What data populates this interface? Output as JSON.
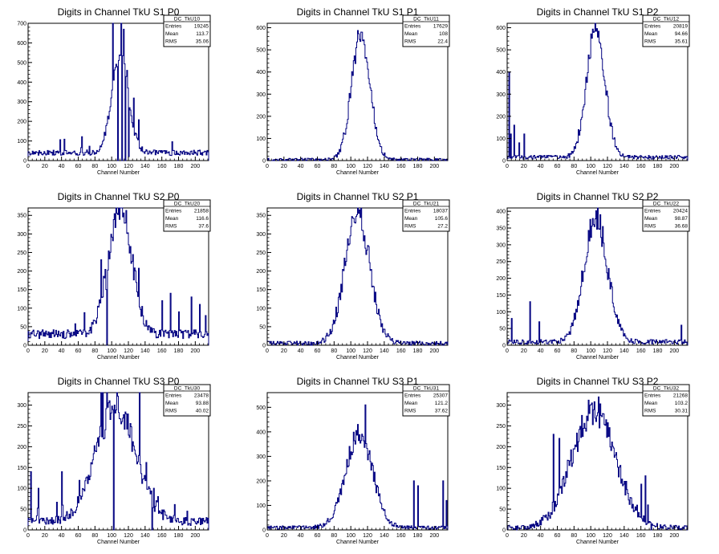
{
  "chart_data": [
    {
      "type": "histogram",
      "title": "Digits in Channel TkU S1 P0",
      "xlabel": "Channel Number",
      "xlim": [
        0,
        216
      ],
      "ylim": [
        0,
        700
      ],
      "xticks": [
        0,
        20,
        40,
        60,
        80,
        100,
        120,
        140,
        160,
        180,
        200
      ],
      "yticks": [
        0,
        100,
        200,
        300,
        400,
        500,
        600,
        700
      ],
      "stats": {
        "name": "DC_TkU10",
        "rows": [
          [
            "Entries",
            "19245"
          ],
          [
            "Mean",
            "113.7"
          ],
          [
            "RMS",
            "35.06"
          ]
        ]
      },
      "shape": {
        "peak": 110,
        "sigma": 10,
        "amp": 500,
        "base": 40
      },
      "spikes": [
        [
          107,
          0
        ],
        [
          108,
          510
        ],
        [
          112,
          0
        ],
        [
          114,
          670
        ],
        [
          116,
          0
        ],
        [
          118,
          460
        ],
        [
          120,
          20
        ]
      ]
    },
    {
      "type": "histogram",
      "title": "Digits in Channel TkU S1 P1",
      "xlabel": "Channel Number",
      "xlim": [
        0,
        216
      ],
      "ylim": [
        0,
        620
      ],
      "xticks": [
        0,
        20,
        40,
        60,
        80,
        100,
        120,
        140,
        160,
        180,
        200
      ],
      "yticks": [
        0,
        100,
        200,
        300,
        400,
        500,
        600
      ],
      "stats": {
        "name": "DC_TkU11",
        "rows": [
          [
            "Entries",
            "17629"
          ],
          [
            "Mean",
            "108"
          ],
          [
            "RMS",
            "22.4"
          ]
        ]
      },
      "shape": {
        "peak": 112,
        "sigma": 11,
        "amp": 570,
        "base": 5
      }
    },
    {
      "type": "histogram",
      "title": "Digits in Channel TkU S1 P2",
      "xlabel": "Channel Number",
      "xlim": [
        0,
        216
      ],
      "ylim": [
        0,
        620
      ],
      "xticks": [
        0,
        20,
        40,
        60,
        80,
        100,
        120,
        140,
        160,
        180,
        200
      ],
      "yticks": [
        0,
        100,
        200,
        300,
        400,
        500,
        600
      ],
      "stats": {
        "name": "DC_TkU12",
        "rows": [
          [
            "Entries",
            "20819"
          ],
          [
            "Mean",
            "94.66"
          ],
          [
            "RMS",
            "35.61"
          ]
        ]
      },
      "shape": {
        "peak": 106,
        "sigma": 11,
        "amp": 580,
        "base": 15
      },
      "spikes": [
        [
          2,
          400
        ],
        [
          4,
          120
        ],
        [
          8,
          160
        ],
        [
          14,
          80
        ],
        [
          20,
          120
        ]
      ]
    },
    {
      "type": "histogram",
      "title": "Digits in Channel TkU S2 P0",
      "xlabel": "Channel Number",
      "xlim": [
        0,
        216
      ],
      "ylim": [
        0,
        370
      ],
      "xticks": [
        0,
        20,
        40,
        60,
        80,
        100,
        120,
        140,
        160,
        180,
        200
      ],
      "yticks": [
        0,
        50,
        100,
        150,
        200,
        250,
        300,
        350
      ],
      "stats": {
        "name": "DC_TkU20",
        "rows": [
          [
            "Entries",
            "21858"
          ],
          [
            "Mean",
            "116.6"
          ],
          [
            "RMS",
            "37.6"
          ]
        ]
      },
      "shape": {
        "peak": 110,
        "sigma": 14,
        "amp": 340,
        "base": 30
      },
      "spikes": [
        [
          93,
          150
        ],
        [
          94,
          0
        ],
        [
          160,
          120
        ],
        [
          170,
          140
        ],
        [
          180,
          90
        ],
        [
          195,
          130
        ],
        [
          205,
          110
        ],
        [
          212,
          80
        ]
      ]
    },
    {
      "type": "histogram",
      "title": "Digits in Channel TkU S2 P1",
      "xlabel": "Channel Number",
      "xlim": [
        0,
        216
      ],
      "ylim": [
        0,
        370
      ],
      "xticks": [
        0,
        20,
        40,
        60,
        80,
        100,
        120,
        140,
        160,
        180,
        200
      ],
      "yticks": [
        0,
        50,
        100,
        150,
        200,
        250,
        300,
        350
      ],
      "stats": {
        "name": "DC_TkU21",
        "rows": [
          [
            "Entries",
            "18037"
          ],
          [
            "Mean",
            "105.6"
          ],
          [
            "RMS",
            "27.2"
          ]
        ]
      },
      "shape": {
        "peak": 108,
        "sigma": 15,
        "amp": 345,
        "base": 5
      }
    },
    {
      "type": "histogram",
      "title": "Digits in Channel TkU S2 P2",
      "xlabel": "Channel Number",
      "xlim": [
        0,
        216
      ],
      "ylim": [
        0,
        410
      ],
      "xticks": [
        0,
        20,
        40,
        60,
        80,
        100,
        120,
        140,
        160,
        180,
        200
      ],
      "yticks": [
        0,
        50,
        100,
        150,
        200,
        250,
        300,
        350,
        400
      ],
      "stats": {
        "name": "DC_TkU22",
        "rows": [
          [
            "Entries",
            "20424"
          ],
          [
            "Mean",
            "98.87"
          ],
          [
            "RMS",
            "36.68"
          ]
        ]
      },
      "shape": {
        "peak": 106,
        "sigma": 14,
        "amp": 370,
        "base": 10
      },
      "spikes": [
        [
          5,
          80
        ],
        [
          27,
          130
        ],
        [
          38,
          70
        ],
        [
          208,
          60
        ]
      ]
    },
    {
      "type": "histogram",
      "title": "Digits in Channel TkU S3 P0",
      "xlabel": "Channel Number",
      "xlim": [
        0,
        216
      ],
      "ylim": [
        0,
        330
      ],
      "xticks": [
        0,
        20,
        40,
        60,
        80,
        100,
        120,
        140,
        160,
        180,
        200
      ],
      "yticks": [
        0,
        50,
        100,
        150,
        200,
        250,
        300
      ],
      "stats": {
        "name": "DC_TkU30",
        "rows": [
          [
            "Entries",
            "23478"
          ],
          [
            "Mean",
            "93.88"
          ],
          [
            "RMS",
            "40.02"
          ]
        ]
      },
      "shape": {
        "peak": 105,
        "sigma": 24,
        "amp": 270,
        "base": 20
      },
      "spikes": [
        [
          3,
          140
        ],
        [
          12,
          100
        ],
        [
          40,
          140
        ],
        [
          102,
          0
        ],
        [
          103,
          300
        ],
        [
          148,
          0
        ],
        [
          150,
          100
        ],
        [
          155,
          80
        ]
      ]
    },
    {
      "type": "histogram",
      "title": "Digits in Channel TkU S3 P1",
      "xlabel": "Channel Number",
      "xlim": [
        0,
        216
      ],
      "ylim": [
        0,
        560
      ],
      "xticks": [
        0,
        20,
        40,
        60,
        80,
        100,
        120,
        140,
        160,
        180,
        200
      ],
      "yticks": [
        0,
        100,
        200,
        300,
        400,
        500
      ],
      "stats": {
        "name": "DC_TkU31",
        "rows": [
          [
            "Entries",
            "25307"
          ],
          [
            "Mean",
            "121.2"
          ],
          [
            "RMS",
            "37.62"
          ]
        ]
      },
      "shape": {
        "peak": 110,
        "sigma": 16,
        "amp": 380,
        "base": 10
      },
      "spikes": [
        [
          117,
          510
        ],
        [
          175,
          200
        ],
        [
          180,
          180
        ],
        [
          210,
          200
        ],
        [
          214,
          120
        ]
      ]
    },
    {
      "type": "histogram",
      "title": "Digits in Channel TkU S3 P2",
      "xlabel": "Channel Number",
      "xlim": [
        0,
        216
      ],
      "ylim": [
        0,
        330
      ],
      "xticks": [
        0,
        20,
        40,
        60,
        80,
        100,
        120,
        140,
        160,
        180,
        200
      ],
      "yticks": [
        0,
        50,
        100,
        150,
        200,
        250,
        300
      ],
      "stats": {
        "name": "DC_TkU32",
        "rows": [
          [
            "Entries",
            "21268"
          ],
          [
            "Mean",
            "103.2"
          ],
          [
            "RMS",
            "30.31"
          ]
        ]
      },
      "shape": {
        "peak": 104,
        "sigma": 26,
        "amp": 285,
        "base": 5
      },
      "spikes": [
        [
          55,
          230
        ],
        [
          62,
          220
        ],
        [
          160,
          110
        ],
        [
          165,
          130
        ],
        [
          168,
          60
        ],
        [
          172,
          0
        ]
      ]
    }
  ],
  "colors": {
    "line": "#000080",
    "axis": "#000000",
    "background": "#ffffff"
  }
}
